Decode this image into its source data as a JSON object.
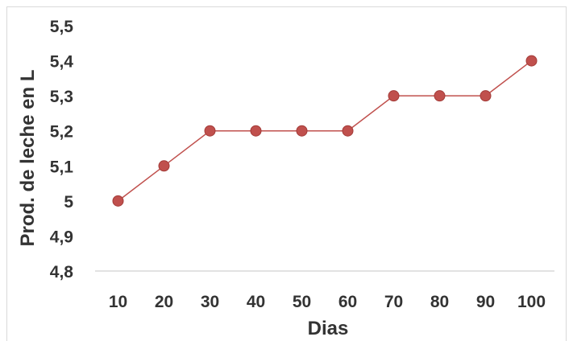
{
  "chart_data": {
    "type": "line",
    "x": [
      10,
      20,
      30,
      40,
      50,
      60,
      70,
      80,
      90,
      100
    ],
    "categories": [
      "10",
      "20",
      "30",
      "40",
      "50",
      "60",
      "70",
      "80",
      "90",
      "100"
    ],
    "series": [
      {
        "values": [
          5.0,
          5.1,
          5.2,
          5.2,
          5.2,
          5.2,
          5.3,
          5.3,
          5.3,
          5.4
        ],
        "color": "#c0504d"
      }
    ],
    "xlabel": "Dias",
    "ylabel": "Prod. de leche en L",
    "ylim": [
      4.8,
      5.5
    ],
    "yticks": [
      4.8,
      4.9,
      5.0,
      5.1,
      5.2,
      5.3,
      5.4,
      5.5
    ],
    "ytick_labels": [
      "4,8",
      "4,9",
      "5",
      "5,1",
      "5,2",
      "5,3",
      "5,4",
      "5,5"
    ],
    "grid": false,
    "legend": "none",
    "axis_color": "#d9d9d9",
    "marker_color": "#c0504d",
    "marker_edge_color": "#a33b38"
  }
}
